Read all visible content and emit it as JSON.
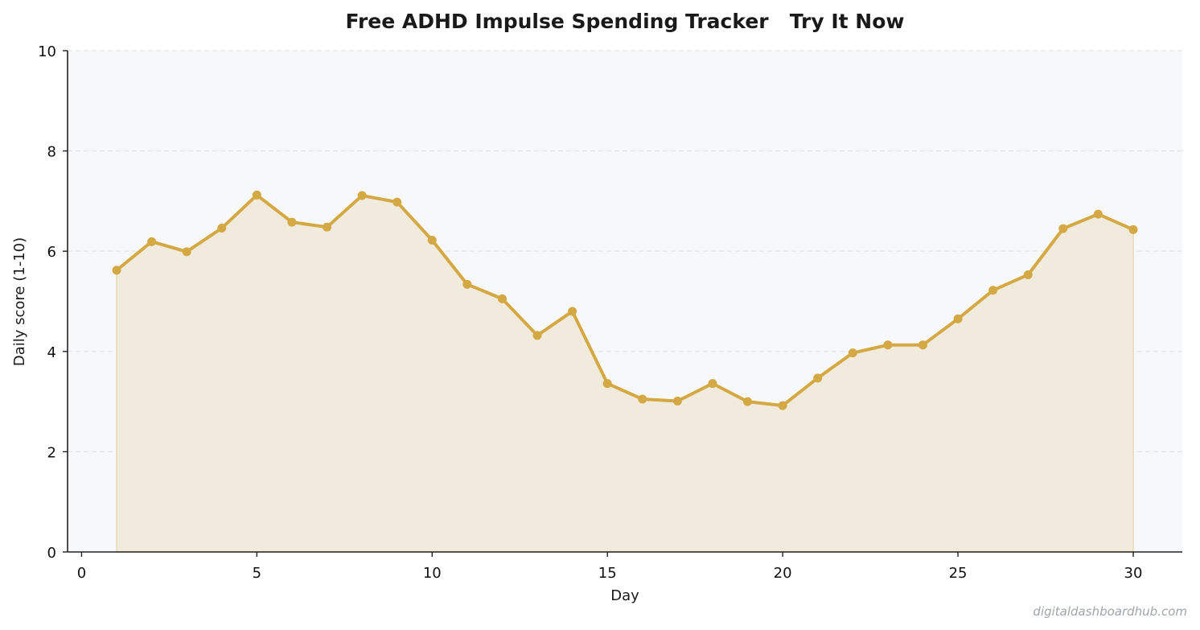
{
  "chart_data": {
    "type": "line",
    "title": "Free ADHD Impulse Spending Tracker   Try It Now",
    "xlabel": "Day",
    "ylabel": "Daily score (1-10)",
    "xlim": [
      -0.4,
      31.4
    ],
    "ylim": [
      0,
      10
    ],
    "xticks": [
      0,
      5,
      10,
      15,
      20,
      25,
      30
    ],
    "yticks": [
      0,
      2,
      4,
      6,
      8,
      10
    ],
    "grid": "horizontal dashed",
    "legend": "none",
    "series": [
      {
        "color": "#d4a843",
        "fill": "area",
        "x": [
          1,
          2,
          3,
          4,
          5,
          6,
          7,
          8,
          9,
          10,
          11,
          12,
          13,
          14,
          15,
          16,
          17,
          18,
          19,
          20,
          21,
          22,
          23,
          24,
          25,
          26,
          27,
          28,
          29,
          30
        ],
        "y": [
          5.62,
          6.19,
          5.99,
          6.46,
          7.12,
          6.58,
          6.48,
          7.11,
          6.98,
          6.22,
          5.34,
          5.05,
          4.32,
          4.8,
          3.36,
          3.05,
          3.01,
          3.36,
          3.0,
          2.92,
          3.47,
          3.97,
          4.13,
          4.13,
          4.65,
          5.22,
          5.53,
          6.45,
          6.74,
          6.43
        ]
      }
    ]
  },
  "watermark": "digitaldashboardhub.com",
  "colors": {
    "plot_background": "#f7f8fa",
    "line": "#d4a843",
    "area_fill": "#f1ebdd",
    "grid": "#e2e4e8",
    "axis": "#222222"
  }
}
